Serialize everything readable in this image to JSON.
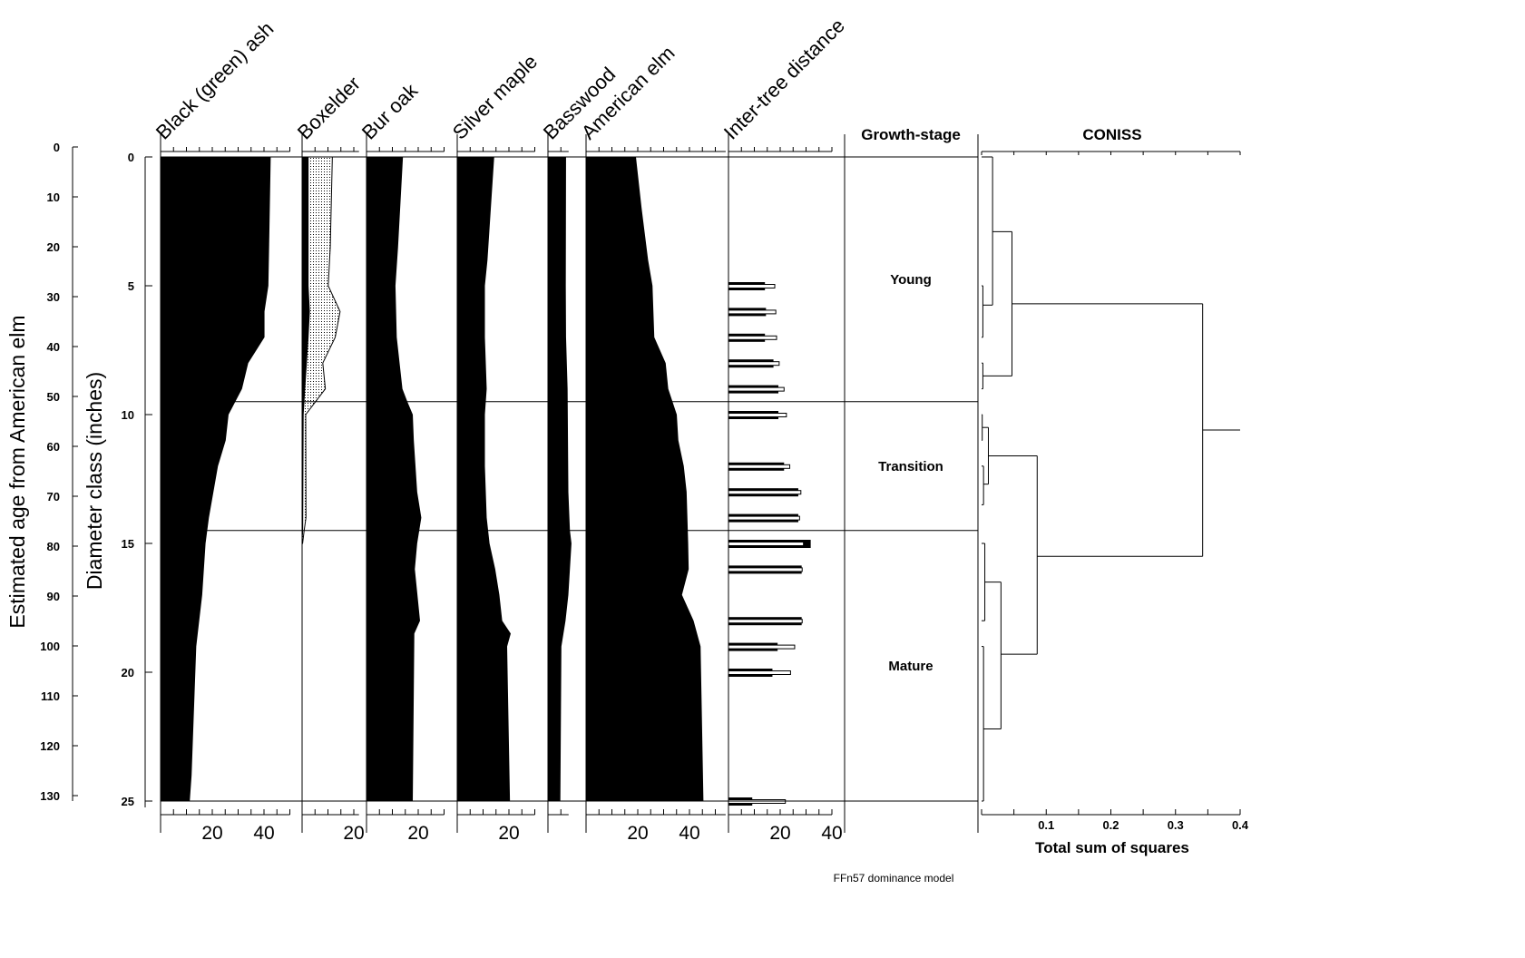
{
  "chart_data": {
    "type": "area",
    "footer": "FFn57 dominance model",
    "y_axes": {
      "age": {
        "label": "Estimated age from American elm",
        "range": [
          0,
          130
        ],
        "ticks": [
          0,
          10,
          20,
          30,
          40,
          50,
          60,
          70,
          80,
          90,
          100,
          110,
          120,
          130
        ]
      },
      "depth": {
        "label": "Diameter class (inches)",
        "range": [
          0,
          25
        ],
        "ticks": [
          0,
          5,
          10,
          15,
          20,
          25
        ]
      }
    },
    "panels": [
      {
        "name": "Black (green) ash",
        "max": 50,
        "tick_labels": [
          20,
          40
        ],
        "points": [
          [
            0,
            42.6
          ],
          [
            3.4,
            42
          ],
          [
            5,
            41.7
          ],
          [
            6,
            40.2
          ],
          [
            7,
            40.2
          ],
          [
            8,
            33.9
          ],
          [
            9,
            31.5
          ],
          [
            10,
            26.3
          ],
          [
            11,
            25.2
          ],
          [
            12,
            22.2
          ],
          [
            14,
            18.7
          ],
          [
            15,
            17.4
          ],
          [
            17,
            16.1
          ],
          [
            19,
            13.8
          ],
          [
            24,
            12
          ],
          [
            25,
            11.3
          ]
        ]
      },
      {
        "name": "Boxelder",
        "max": 22,
        "tick_labels": [
          20
        ],
        "points": [
          [
            0,
            2.5
          ],
          [
            5,
            2.5
          ],
          [
            6,
            3
          ],
          [
            7,
            2.5
          ],
          [
            9,
            1.2
          ],
          [
            10,
            0.6
          ],
          [
            14.5,
            0.4
          ],
          [
            15,
            0.1
          ]
        ],
        "stippled_points": [
          [
            0,
            11.7
          ],
          [
            3.5,
            10.9
          ],
          [
            5,
            10.1
          ],
          [
            6,
            14.7
          ],
          [
            7,
            12.8
          ],
          [
            8,
            8
          ],
          [
            9,
            9
          ],
          [
            9.5,
            5.2
          ],
          [
            10,
            1.4
          ],
          [
            14,
            1.5
          ],
          [
            14.5,
            0.8
          ],
          [
            15,
            0.2
          ]
        ]
      },
      {
        "name": "Bur oak",
        "max": 30,
        "tick_labels": [
          20
        ],
        "points": [
          [
            0,
            14.1
          ],
          [
            3.5,
            12.2
          ],
          [
            5,
            11.2
          ],
          [
            7,
            11.7
          ],
          [
            8,
            12.8
          ],
          [
            9,
            13.9
          ],
          [
            9.5,
            15.8
          ],
          [
            10,
            17.9
          ],
          [
            11,
            18.3
          ],
          [
            13,
            19.6
          ],
          [
            14,
            21.2
          ],
          [
            15,
            19.6
          ],
          [
            16,
            18.7
          ],
          [
            18,
            20.7
          ],
          [
            18.5,
            18.5
          ],
          [
            25,
            17.9
          ]
        ]
      },
      {
        "name": "Silver maple",
        "max": 30,
        "tick_labels": [
          20
        ],
        "points": [
          [
            0,
            14.3
          ],
          [
            2,
            13
          ],
          [
            4,
            11.7
          ],
          [
            5,
            10.7
          ],
          [
            7,
            10.7
          ],
          [
            9,
            11.4
          ],
          [
            10,
            10.7
          ],
          [
            12,
            10.7
          ],
          [
            14,
            11.4
          ],
          [
            15,
            12.5
          ],
          [
            16,
            14.7
          ],
          [
            17,
            16.3
          ],
          [
            18,
            17.4
          ],
          [
            18.5,
            20.7
          ],
          [
            19,
            19.3
          ],
          [
            25,
            20.4
          ]
        ]
      },
      {
        "name": "Basswood",
        "max": 8,
        "tick_labels": [],
        "points": [
          [
            0,
            7
          ],
          [
            5,
            6.9
          ],
          [
            7,
            7
          ],
          [
            9,
            7.6
          ],
          [
            13,
            7.9
          ],
          [
            14.5,
            8.5
          ],
          [
            15,
            9.1
          ],
          [
            16,
            8.5
          ],
          [
            17,
            7.9
          ],
          [
            18,
            6.8
          ],
          [
            19,
            5.2
          ],
          [
            25,
            4.8
          ]
        ]
      },
      {
        "name": "American elm",
        "max": 54,
        "tick_labels": [
          20,
          40
        ],
        "points": [
          [
            0,
            19.3
          ],
          [
            2,
            21.5
          ],
          [
            4,
            24
          ],
          [
            5,
            25.7
          ],
          [
            7,
            26.4
          ],
          [
            8,
            30.8
          ],
          [
            9,
            31.8
          ],
          [
            10,
            35.1
          ],
          [
            11,
            35.7
          ],
          [
            12,
            37.8
          ],
          [
            13,
            38.9
          ],
          [
            15,
            39.5
          ],
          [
            16,
            39.7
          ],
          [
            17,
            37.1
          ],
          [
            18,
            41.6
          ],
          [
            19,
            44.3
          ],
          [
            25,
            45.4
          ]
        ]
      }
    ],
    "bars": {
      "name": "Inter-tree distance",
      "max": 40,
      "tick_labels": [
        20,
        40
      ],
      "rows": [
        {
          "depth": 5,
          "black": 14.1,
          "white": 17.9
        },
        {
          "depth": 6,
          "black": 14.5,
          "white": 18.3
        },
        {
          "depth": 7,
          "black": 14.1,
          "white": 18.6
        },
        {
          "depth": 8,
          "black": 17.4,
          "white": 19.6
        },
        {
          "depth": 9,
          "black": 19.3,
          "white": 21.5
        },
        {
          "depth": 10,
          "black": 19.3,
          "white": 22.4
        },
        {
          "depth": 12,
          "black": 21.5,
          "white": 23.7
        },
        {
          "depth": 13,
          "black": 27,
          "white": 28
        },
        {
          "depth": 14,
          "black": 27,
          "white": 27.5
        },
        {
          "depth": 15,
          "black": 31.8,
          "white": 29
        },
        {
          "depth": 16,
          "black": 28.3,
          "white": 28.5
        },
        {
          "depth": 18,
          "black": 28.3,
          "white": 28.5
        },
        {
          "depth": 19,
          "black": 19,
          "white": 25.6
        },
        {
          "depth": 20,
          "black": 17,
          "white": 24
        },
        {
          "depth": 25,
          "black": 9.2,
          "white": 22
        }
      ]
    },
    "growth_stage": {
      "title": "Growth-stage",
      "boundaries": [
        9.5,
        14.5
      ],
      "zones": [
        {
          "label": "Young",
          "center": 4.75
        },
        {
          "label": "Transition",
          "center": 12
        },
        {
          "label": "Mature",
          "center": 19.75
        }
      ]
    },
    "coniss": {
      "title": "CONISS",
      "xlabel": "Total sum of squares",
      "range": [
        0,
        0.4
      ],
      "ticks": [
        0.1,
        0.2,
        0.3,
        0.4
      ],
      "root_depth": 10.6,
      "merges": [
        {
          "h": 0.002,
          "y1": 5,
          "y2": 7,
          "h1": 0,
          "h2": 0
        },
        {
          "h": 0.017,
          "y1": 0,
          "y2": 5.75,
          "h1": 0,
          "h2": 0.002
        },
        {
          "h": 0.002,
          "y1": 8,
          "y2": 9,
          "h1": 0,
          "h2": 0
        },
        {
          "h": 0.047,
          "y1": 2.9,
          "y2": 8.5,
          "h1": 0.017,
          "h2": 0.002
        },
        {
          "h": 0.001,
          "y1": 10,
          "y2": 11,
          "h1": 0,
          "h2": 0
        },
        {
          "h": 0.003,
          "y1": 12,
          "y2": 13.5,
          "h1": 0,
          "h2": 0
        },
        {
          "h": 0.0105,
          "y1": 10.5,
          "y2": 12.7,
          "h1": 0.001,
          "h2": 0.003
        },
        {
          "h": 0.005,
          "y1": 15,
          "y2": 18,
          "h1": 0,
          "h2": 0
        },
        {
          "h": 0.003,
          "y1": 19,
          "y2": 25,
          "h1": 0,
          "h2": 0
        },
        {
          "h": 0.03,
          "y1": 16.5,
          "y2": 22.2,
          "h1": 0.005,
          "h2": 0.003
        },
        {
          "h": 0.086,
          "y1": 11.6,
          "y2": 19.3,
          "h1": 0.0105,
          "h2": 0.03
        },
        {
          "h": 0.342,
          "y1": 5.7,
          "y2": 15.5,
          "h1": 0.047,
          "h2": 0.086
        }
      ]
    }
  }
}
